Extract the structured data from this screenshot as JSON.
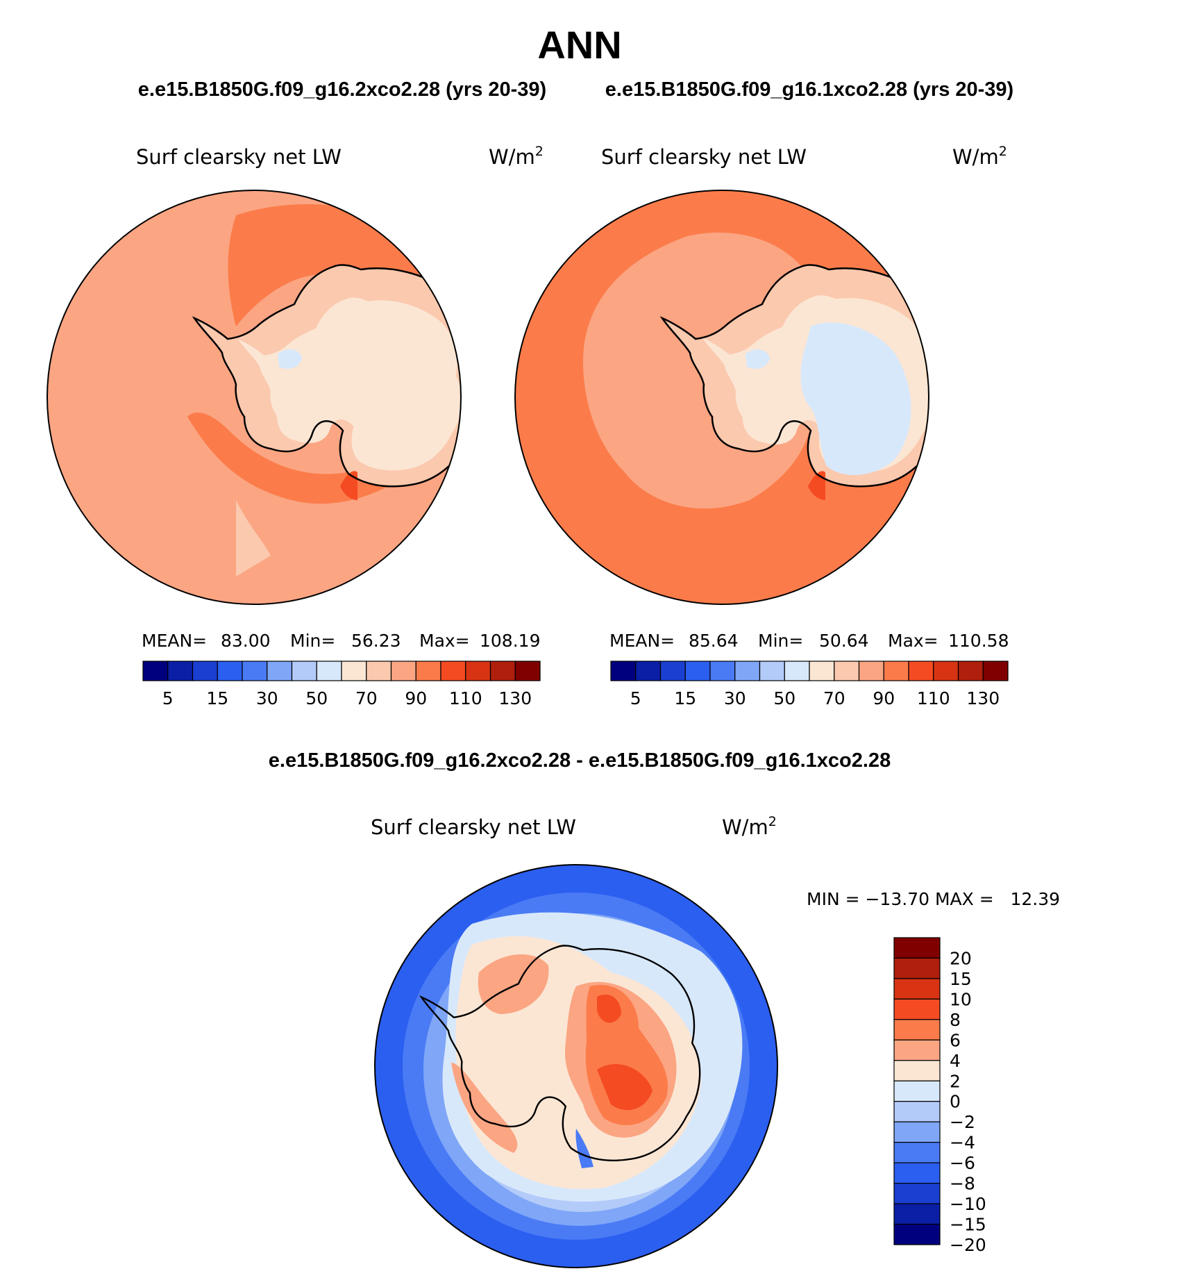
{
  "title": "ANN",
  "subtitle_left": "e.e15.B1850G.f09_g16.2xco2.28 (yrs 20-39)",
  "subtitle_right": "e.e15.B1850G.f09_g16.1xco2.28 (yrs 20-39)",
  "diff_title": "e.e15.B1850G.f09_g16.2xco2.28 - e.e15.B1850G.f09_g16.1xco2.28",
  "colors": {
    "ocean_outline": "#000000",
    "coast": "#000000"
  },
  "chart_data": [
    {
      "type": "heatmap",
      "panel": "left",
      "variable": "Surf clearsky net LW",
      "units": "W/m",
      "units_exp": "2",
      "stats": {
        "mean_label": "MEAN=",
        "mean": "83.00",
        "min_label": "Min=",
        "min": "56.23",
        "max_label": "Max=",
        "max": "108.19"
      },
      "colorbar": {
        "colors": [
          "#00007f",
          "#0a1fa6",
          "#1b3fd1",
          "#2b5ff0",
          "#4a7bf5",
          "#7fa6f7",
          "#b3cbf9",
          "#d8e8fb",
          "#fbe6d4",
          "#fbc9ae",
          "#fba583",
          "#fb7c4a",
          "#f54b22",
          "#d83414",
          "#b01f0d",
          "#800000"
        ],
        "tick_labels": [
          "5",
          "15",
          "30",
          "50",
          "70",
          "90",
          "110",
          "130"
        ]
      }
    },
    {
      "type": "heatmap",
      "panel": "right",
      "variable": "Surf clearsky net LW",
      "units": "W/m",
      "units_exp": "2",
      "stats": {
        "mean_label": "MEAN=",
        "mean": "85.64",
        "min_label": "Min=",
        "min": "50.64",
        "max_label": "Max=",
        "max": "110.58"
      },
      "colorbar": {
        "colors": [
          "#00007f",
          "#0a1fa6",
          "#1b3fd1",
          "#2b5ff0",
          "#4a7bf5",
          "#7fa6f7",
          "#b3cbf9",
          "#d8e8fb",
          "#fbe6d4",
          "#fbc9ae",
          "#fba583",
          "#fb7c4a",
          "#f54b22",
          "#d83414",
          "#b01f0d",
          "#800000"
        ],
        "tick_labels": [
          "5",
          "15",
          "30",
          "50",
          "70",
          "90",
          "110",
          "130"
        ]
      }
    },
    {
      "type": "heatmap",
      "panel": "difference",
      "variable": "Surf clearsky net LW",
      "units": "W/m",
      "units_exp": "2",
      "stats": {
        "text": "MIN = −13.70 MAX =   12.39"
      },
      "colorbar": {
        "colors_top_to_bottom": [
          "#800000",
          "#b01f0d",
          "#d83414",
          "#f54b22",
          "#fb7c4a",
          "#fba583",
          "#fbe6d4",
          "#d8e8fb",
          "#b3cbf9",
          "#7fa6f7",
          "#4a7bf5",
          "#2b5ff0",
          "#1b3fd1",
          "#0a1fa6",
          "#00007f"
        ],
        "tick_labels": [
          "20",
          "15",
          "10",
          "8",
          "6",
          "4",
          "2",
          "0",
          "−2",
          "−4",
          "−6",
          "−8",
          "−10",
          "−15",
          "−20"
        ]
      }
    }
  ]
}
